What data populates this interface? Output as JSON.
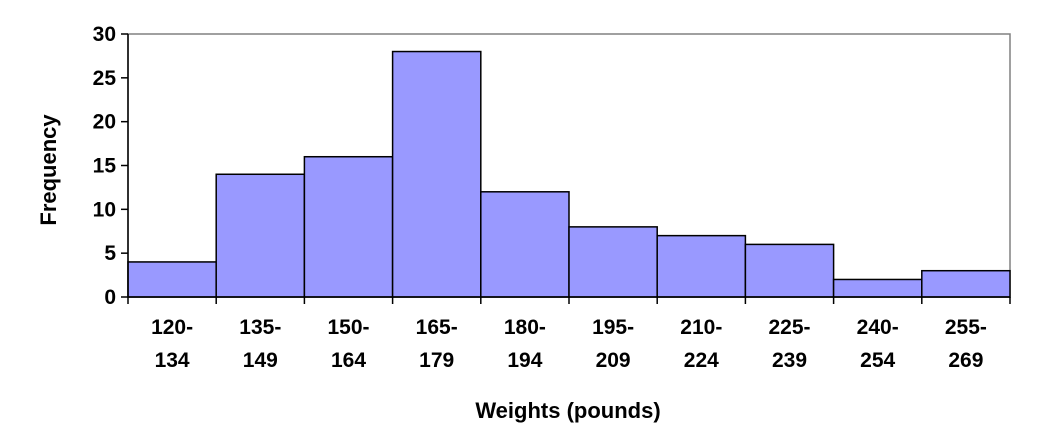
{
  "chart_data": {
    "type": "bar",
    "title": "",
    "xlabel": "Weights (pounds)",
    "ylabel": "Frequency",
    "categories": [
      [
        "120-",
        "134"
      ],
      [
        "135-",
        "149"
      ],
      [
        "150-",
        "164"
      ],
      [
        "165-",
        "179"
      ],
      [
        "180-",
        "194"
      ],
      [
        "195-",
        "209"
      ],
      [
        "210-",
        "224"
      ],
      [
        "225-",
        "239"
      ],
      [
        "240-",
        "254"
      ],
      [
        "255-",
        "269"
      ]
    ],
    "values": [
      4,
      14,
      16,
      28,
      12,
      8,
      7,
      6,
      2,
      3
    ],
    "ylim": [
      0,
      30
    ],
    "yticks": [
      0,
      5,
      10,
      15,
      20,
      25,
      30
    ],
    "grid": false,
    "bar_color": "#9999FF",
    "bar_edge_color": "#000000",
    "plot_border_color": "#808080"
  }
}
